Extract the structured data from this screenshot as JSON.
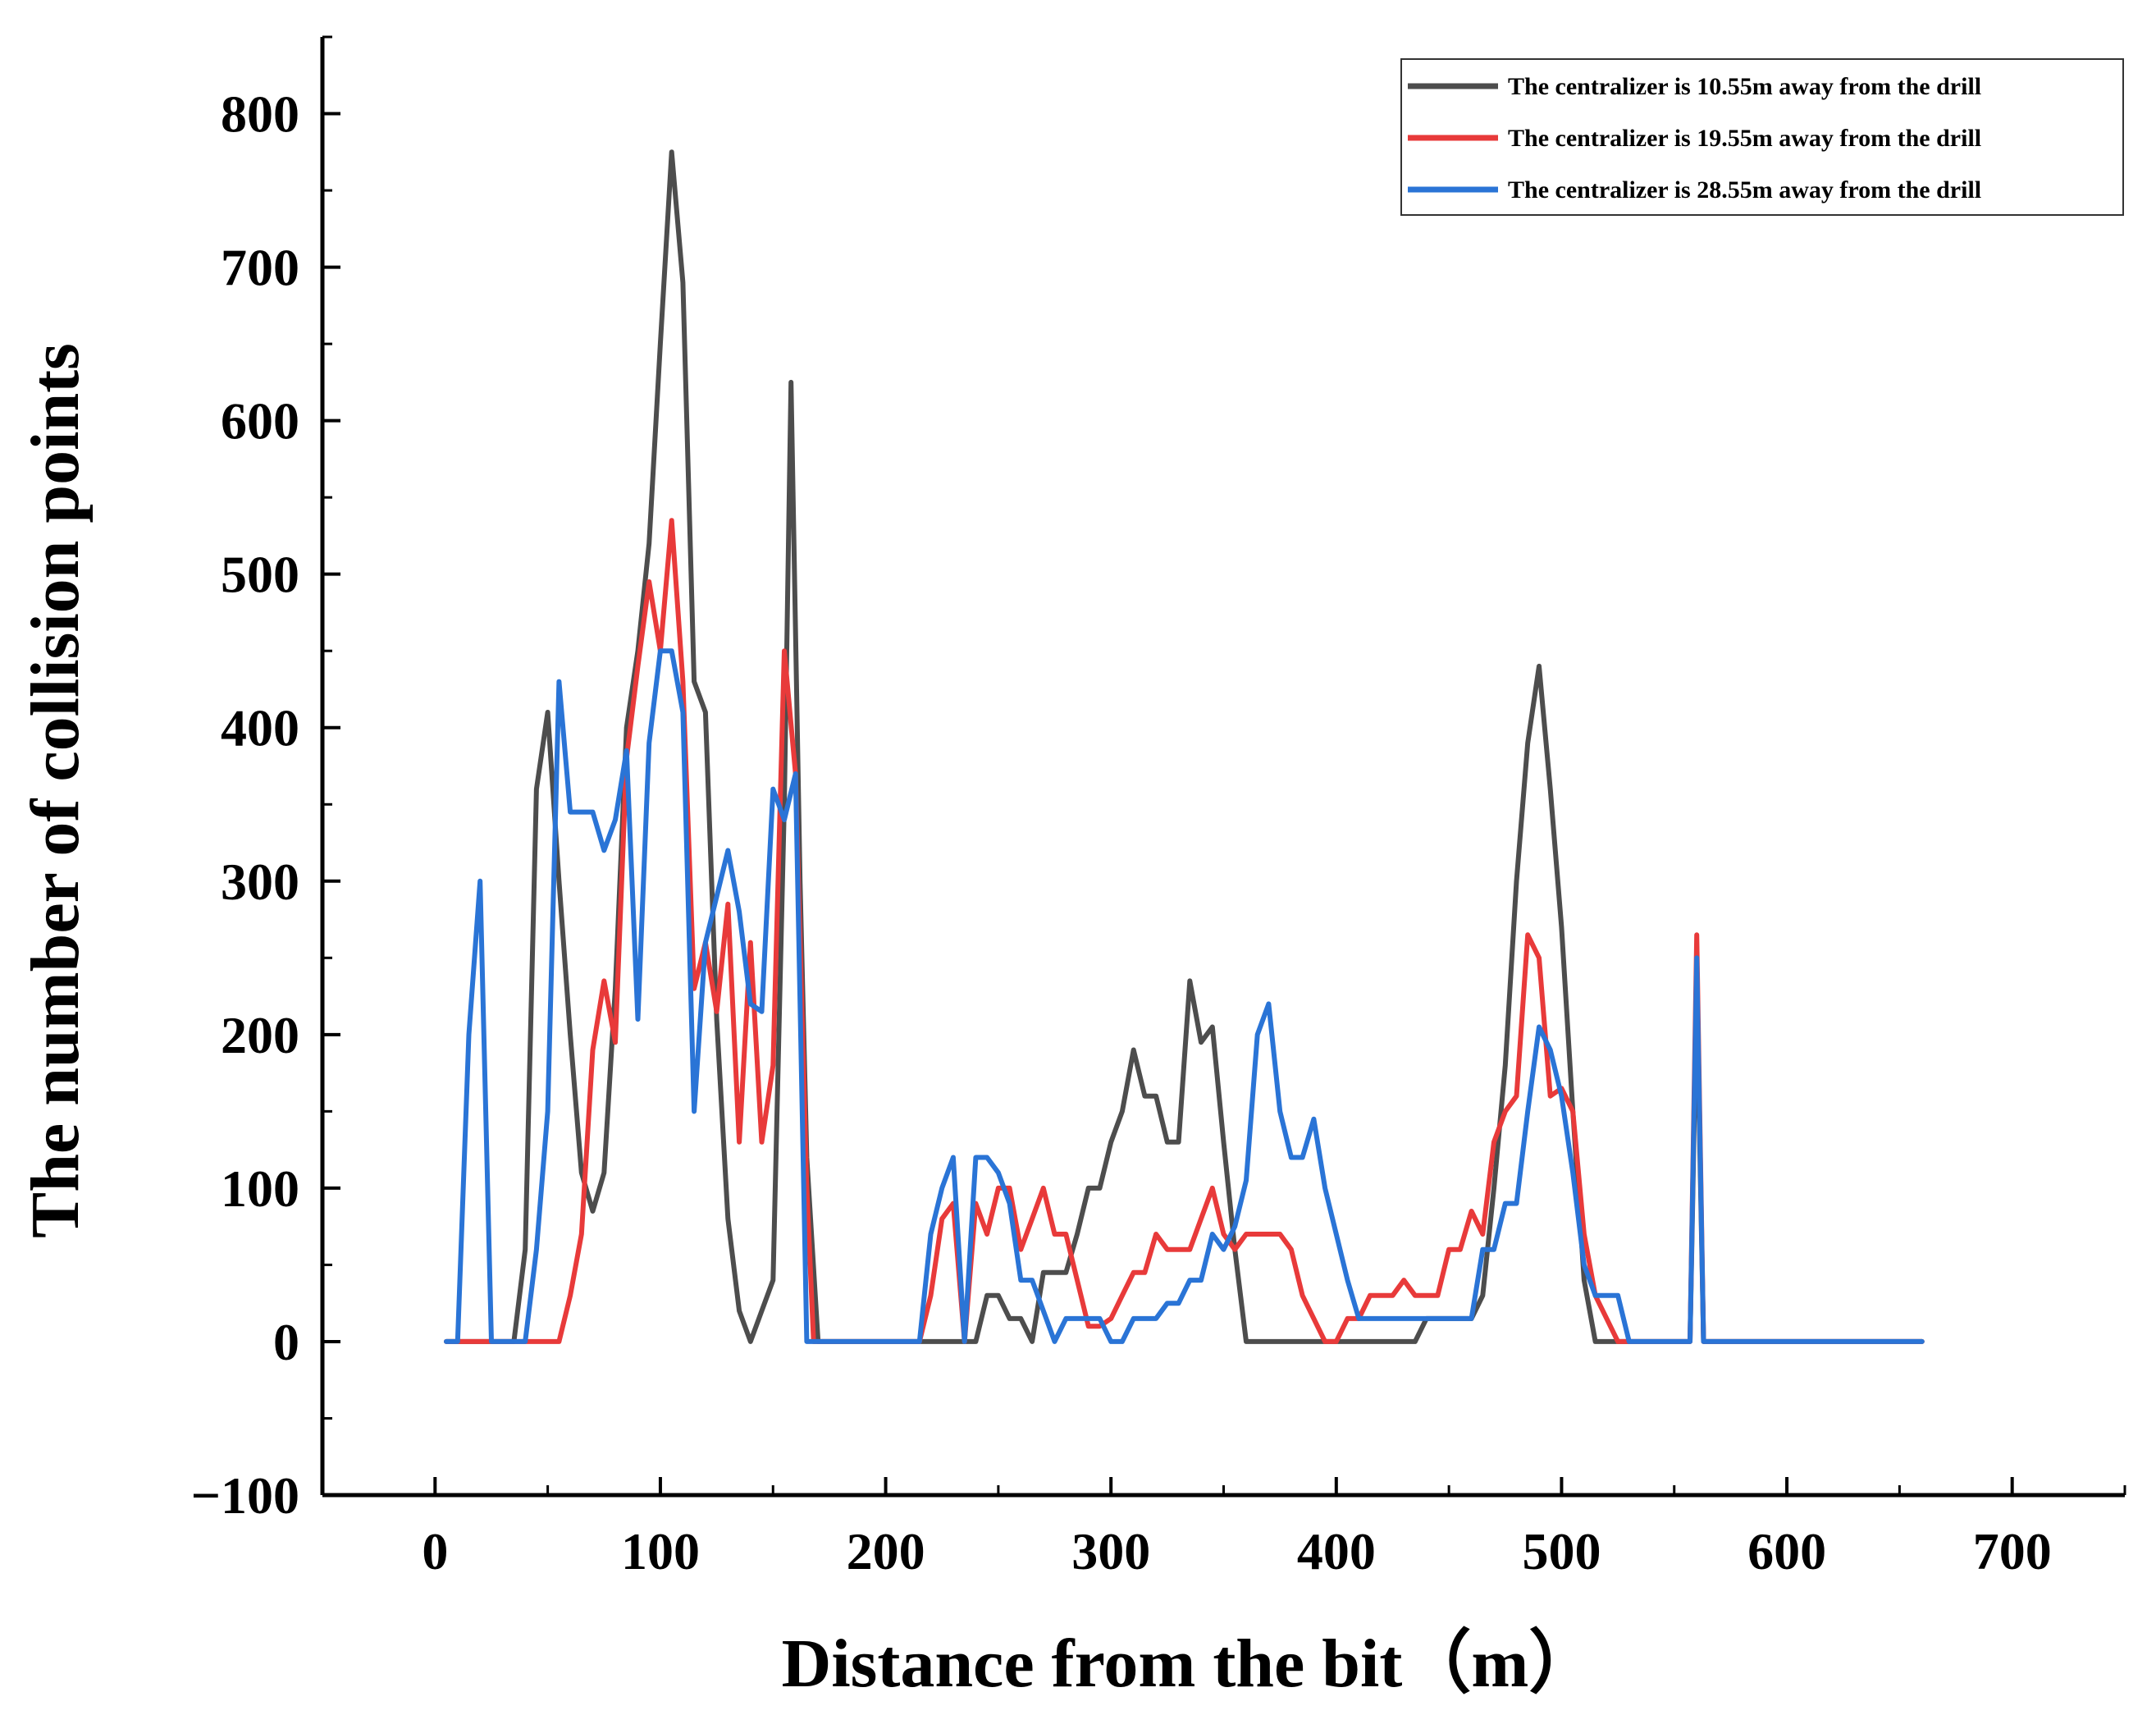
{
  "chart_data": {
    "type": "line",
    "title": "",
    "xlabel": "Distance from the bit（m）",
    "ylabel": "The number of collision points",
    "xlim": [
      -50,
      750
    ],
    "ylim": [
      -100,
      850
    ],
    "xticks": [
      0,
      100,
      200,
      300,
      400,
      500,
      600,
      700
    ],
    "yticks": [
      -100,
      0,
      100,
      200,
      300,
      400,
      500,
      600,
      700,
      800
    ],
    "xtick_labels": [
      "0",
      "100",
      "200",
      "300",
      "400",
      "500",
      "600",
      "700"
    ],
    "ytick_labels": [
      "−100",
      "0",
      "100",
      "200",
      "300",
      "400",
      "500",
      "600",
      "700",
      "800"
    ],
    "legend_position": "top-right",
    "series": [
      {
        "name": "The centralizer is 10.55m away from the drill",
        "color": "#4d4d4d",
        "points": [
          [
            5,
            0
          ],
          [
            30,
            0
          ],
          [
            35,
            0
          ],
          [
            40,
            60
          ],
          [
            45,
            360
          ],
          [
            50,
            410
          ],
          [
            55,
            300
          ],
          [
            60,
            200
          ],
          [
            65,
            110
          ],
          [
            70,
            85
          ],
          [
            75,
            110
          ],
          [
            80,
            230
          ],
          [
            85,
            400
          ],
          [
            90,
            450
          ],
          [
            95,
            520
          ],
          [
            100,
            650
          ],
          [
            105,
            775
          ],
          [
            110,
            690
          ],
          [
            115,
            430
          ],
          [
            120,
            410
          ],
          [
            125,
            210
          ],
          [
            130,
            80
          ],
          [
            135,
            20
          ],
          [
            140,
            0
          ],
          [
            145,
            20
          ],
          [
            150,
            40
          ],
          [
            155,
            350
          ],
          [
            158,
            625
          ],
          [
            162,
            300
          ],
          [
            165,
            120
          ],
          [
            170,
            0
          ],
          [
            215,
            0
          ],
          [
            230,
            0
          ],
          [
            240,
            0
          ],
          [
            245,
            30
          ],
          [
            250,
            30
          ],
          [
            255,
            15
          ],
          [
            260,
            15
          ],
          [
            265,
            0
          ],
          [
            270,
            45
          ],
          [
            275,
            45
          ],
          [
            280,
            45
          ],
          [
            285,
            70
          ],
          [
            290,
            100
          ],
          [
            295,
            100
          ],
          [
            300,
            130
          ],
          [
            305,
            150
          ],
          [
            310,
            190
          ],
          [
            315,
            160
          ],
          [
            320,
            160
          ],
          [
            325,
            130
          ],
          [
            330,
            130
          ],
          [
            335,
            235
          ],
          [
            340,
            195
          ],
          [
            345,
            205
          ],
          [
            350,
            130
          ],
          [
            355,
            60
          ],
          [
            360,
            0
          ],
          [
            400,
            0
          ],
          [
            435,
            0
          ],
          [
            440,
            15
          ],
          [
            450,
            15
          ],
          [
            460,
            15
          ],
          [
            465,
            30
          ],
          [
            470,
            100
          ],
          [
            475,
            180
          ],
          [
            480,
            300
          ],
          [
            485,
            390
          ],
          [
            490,
            440
          ],
          [
            495,
            360
          ],
          [
            500,
            270
          ],
          [
            505,
            150
          ],
          [
            510,
            40
          ],
          [
            515,
            0
          ],
          [
            550,
            0
          ],
          [
            557,
            0
          ],
          [
            560,
            230
          ],
          [
            563,
            0
          ],
          [
            600,
            0
          ],
          [
            660,
            0
          ]
        ]
      },
      {
        "name": "The centralizer is 19.55m away from the drill",
        "color": "#e83a3a",
        "points": [
          [
            5,
            0
          ],
          [
            55,
            0
          ],
          [
            60,
            30
          ],
          [
            65,
            70
          ],
          [
            70,
            190
          ],
          [
            75,
            235
          ],
          [
            80,
            195
          ],
          [
            85,
            380
          ],
          [
            90,
            440
          ],
          [
            95,
            495
          ],
          [
            100,
            450
          ],
          [
            105,
            535
          ],
          [
            110,
            430
          ],
          [
            115,
            230
          ],
          [
            120,
            260
          ],
          [
            125,
            215
          ],
          [
            130,
            285
          ],
          [
            135,
            130
          ],
          [
            140,
            260
          ],
          [
            145,
            130
          ],
          [
            150,
            180
          ],
          [
            155,
            450
          ],
          [
            160,
            370
          ],
          [
            165,
            100
          ],
          [
            168,
            0
          ],
          [
            215,
            0
          ],
          [
            220,
            30
          ],
          [
            225,
            80
          ],
          [
            230,
            90
          ],
          [
            235,
            0
          ],
          [
            240,
            90
          ],
          [
            245,
            70
          ],
          [
            250,
            100
          ],
          [
            255,
            100
          ],
          [
            260,
            60
          ],
          [
            265,
            80
          ],
          [
            270,
            100
          ],
          [
            275,
            70
          ],
          [
            280,
            70
          ],
          [
            285,
            40
          ],
          [
            290,
            10
          ],
          [
            295,
            10
          ],
          [
            300,
            15
          ],
          [
            305,
            30
          ],
          [
            310,
            45
          ],
          [
            315,
            45
          ],
          [
            320,
            70
          ],
          [
            325,
            60
          ],
          [
            330,
            60
          ],
          [
            335,
            60
          ],
          [
            340,
            80
          ],
          [
            345,
            100
          ],
          [
            350,
            70
          ],
          [
            355,
            60
          ],
          [
            360,
            70
          ],
          [
            365,
            70
          ],
          [
            375,
            70
          ],
          [
            380,
            60
          ],
          [
            385,
            30
          ],
          [
            390,
            15
          ],
          [
            395,
            0
          ],
          [
            400,
            0
          ],
          [
            405,
            15
          ],
          [
            410,
            15
          ],
          [
            415,
            30
          ],
          [
            425,
            30
          ],
          [
            430,
            40
          ],
          [
            435,
            30
          ],
          [
            440,
            30
          ],
          [
            445,
            30
          ],
          [
            450,
            60
          ],
          [
            455,
            60
          ],
          [
            460,
            85
          ],
          [
            465,
            70
          ],
          [
            470,
            130
          ],
          [
            475,
            150
          ],
          [
            480,
            160
          ],
          [
            485,
            265
          ],
          [
            490,
            250
          ],
          [
            495,
            160
          ],
          [
            500,
            165
          ],
          [
            505,
            150
          ],
          [
            510,
            70
          ],
          [
            515,
            30
          ],
          [
            520,
            15
          ],
          [
            525,
            0
          ],
          [
            557,
            0
          ],
          [
            560,
            265
          ],
          [
            563,
            0
          ],
          [
            600,
            0
          ],
          [
            660,
            0
          ]
        ]
      },
      {
        "name": "The centralizer is 28.55m away from the drill",
        "color": "#2a74d6",
        "points": [
          [
            5,
            0
          ],
          [
            10,
            0
          ],
          [
            15,
            200
          ],
          [
            20,
            300
          ],
          [
            25,
            0
          ],
          [
            40,
            0
          ],
          [
            45,
            60
          ],
          [
            50,
            150
          ],
          [
            55,
            430
          ],
          [
            60,
            345
          ],
          [
            65,
            345
          ],
          [
            70,
            345
          ],
          [
            75,
            320
          ],
          [
            80,
            340
          ],
          [
            85,
            385
          ],
          [
            90,
            210
          ],
          [
            95,
            390
          ],
          [
            100,
            450
          ],
          [
            105,
            450
          ],
          [
            110,
            410
          ],
          [
            115,
            150
          ],
          [
            120,
            260
          ],
          [
            125,
            290
          ],
          [
            130,
            320
          ],
          [
            135,
            280
          ],
          [
            140,
            220
          ],
          [
            145,
            215
          ],
          [
            150,
            360
          ],
          [
            155,
            340
          ],
          [
            160,
            370
          ],
          [
            165,
            0
          ],
          [
            215,
            0
          ],
          [
            220,
            70
          ],
          [
            225,
            100
          ],
          [
            230,
            120
          ],
          [
            235,
            0
          ],
          [
            240,
            120
          ],
          [
            245,
            120
          ],
          [
            250,
            110
          ],
          [
            255,
            90
          ],
          [
            260,
            40
          ],
          [
            265,
            40
          ],
          [
            270,
            20
          ],
          [
            275,
            0
          ],
          [
            280,
            15
          ],
          [
            285,
            15
          ],
          [
            295,
            15
          ],
          [
            300,
            0
          ],
          [
            305,
            0
          ],
          [
            310,
            15
          ],
          [
            320,
            15
          ],
          [
            325,
            25
          ],
          [
            330,
            25
          ],
          [
            335,
            40
          ],
          [
            340,
            40
          ],
          [
            345,
            70
          ],
          [
            350,
            60
          ],
          [
            355,
            75
          ],
          [
            360,
            105
          ],
          [
            365,
            200
          ],
          [
            370,
            220
          ],
          [
            375,
            150
          ],
          [
            380,
            120
          ],
          [
            385,
            120
          ],
          [
            390,
            145
          ],
          [
            395,
            100
          ],
          [
            400,
            70
          ],
          [
            405,
            40
          ],
          [
            410,
            15
          ],
          [
            460,
            15
          ],
          [
            465,
            60
          ],
          [
            470,
            60
          ],
          [
            475,
            90
          ],
          [
            480,
            90
          ],
          [
            485,
            150
          ],
          [
            490,
            205
          ],
          [
            495,
            190
          ],
          [
            500,
            160
          ],
          [
            505,
            110
          ],
          [
            510,
            50
          ],
          [
            515,
            30
          ],
          [
            525,
            30
          ],
          [
            530,
            0
          ],
          [
            557,
            0
          ],
          [
            560,
            250
          ],
          [
            563,
            0
          ],
          [
            600,
            0
          ],
          [
            660,
            0
          ]
        ]
      }
    ]
  }
}
